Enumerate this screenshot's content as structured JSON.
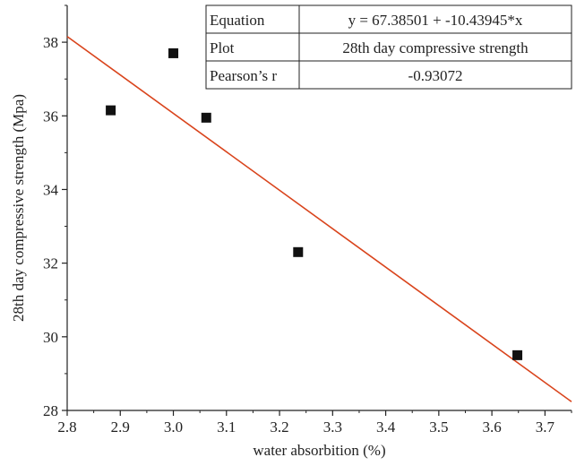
{
  "chart_data": {
    "type": "scatter",
    "title": "",
    "xlabel": "water absorbition (%)",
    "ylabel": "28th day compressive strength (Mpa)",
    "xlim": [
      2.8,
      3.75
    ],
    "ylim": [
      28,
      39
    ],
    "xticks": [
      "2.8",
      "2.9",
      "3.0",
      "3.1",
      "3.2",
      "3.3",
      "3.4",
      "3.5",
      "3.6",
      "3.7"
    ],
    "yticks": [
      "28",
      "30",
      "32",
      "34",
      "36",
      "38"
    ],
    "grid": false,
    "series": [
      {
        "type": "scatter",
        "marker": "square",
        "color": "#111111",
        "x": [
          2.882,
          3.0,
          3.062,
          3.235,
          3.648
        ],
        "y": [
          36.15,
          37.7,
          35.95,
          32.3,
          29.5
        ]
      },
      {
        "type": "line",
        "color": "#d9441c",
        "intercept": 67.38501,
        "slope": -10.43945,
        "x": [
          2.8,
          3.75
        ]
      }
    ],
    "stats_table": {
      "rows": [
        {
          "label": "Equation",
          "value": "y = 67.38501 + -10.43945*x"
        },
        {
          "label": "Plot",
          "value": "28th day compressive strength"
        },
        {
          "label": "Pearson’s r",
          "value": "-0.93072"
        }
      ]
    }
  }
}
